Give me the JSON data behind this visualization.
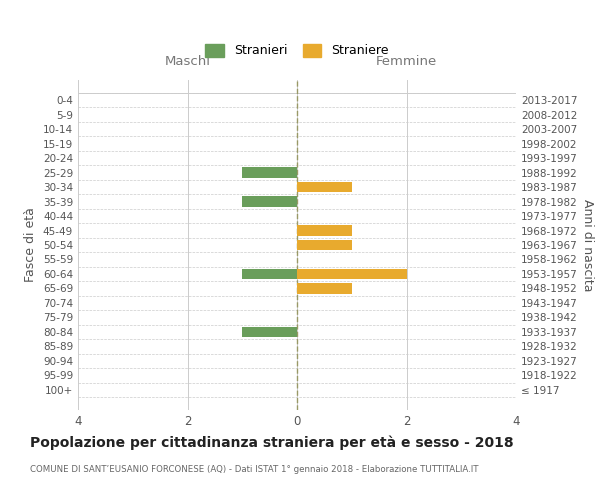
{
  "age_groups": [
    "0-4",
    "5-9",
    "10-14",
    "15-19",
    "20-24",
    "25-29",
    "30-34",
    "35-39",
    "40-44",
    "45-49",
    "50-54",
    "55-59",
    "60-64",
    "65-69",
    "70-74",
    "75-79",
    "80-84",
    "85-89",
    "90-94",
    "95-99",
    "100+"
  ],
  "birth_years": [
    "2013-2017",
    "2008-2012",
    "2003-2007",
    "1998-2002",
    "1993-1997",
    "1988-1992",
    "1983-1987",
    "1978-1982",
    "1973-1977",
    "1968-1972",
    "1963-1967",
    "1958-1962",
    "1953-1957",
    "1948-1952",
    "1943-1947",
    "1938-1942",
    "1933-1937",
    "1928-1932",
    "1923-1927",
    "1918-1922",
    "≤ 1917"
  ],
  "maschi": [
    0,
    0,
    0,
    0,
    0,
    -1,
    0,
    -1,
    0,
    0,
    0,
    0,
    -1,
    0,
    0,
    0,
    -1,
    0,
    0,
    0,
    0
  ],
  "femmine": [
    0,
    0,
    0,
    0,
    0,
    0,
    1,
    0,
    0,
    1,
    1,
    0,
    2,
    1,
    0,
    0,
    0,
    0,
    0,
    0,
    0
  ],
  "male_color": "#6a9e5b",
  "female_color": "#e8aa2e",
  "grid_color": "#cccccc",
  "center_line_color": "#999966",
  "title": "Popolazione per cittadinanza straniera per età e sesso - 2018",
  "subtitle": "COMUNE DI SANT’EUSANIO FORCONESE (AQ) - Dati ISTAT 1° gennaio 2018 - Elaborazione TUTTITALIA.IT",
  "ylabel_left": "Fasce di età",
  "ylabel_right": "Anni di nascita",
  "xlabel_maschi": "Maschi",
  "xlabel_femmine": "Femmine",
  "legend_male": "Stranieri",
  "legend_female": "Straniere",
  "xlim": [
    -4,
    4
  ],
  "xticks": [
    -4,
    -2,
    0,
    2,
    4
  ],
  "xticklabels": [
    "4",
    "2",
    "0",
    "2",
    "4"
  ]
}
